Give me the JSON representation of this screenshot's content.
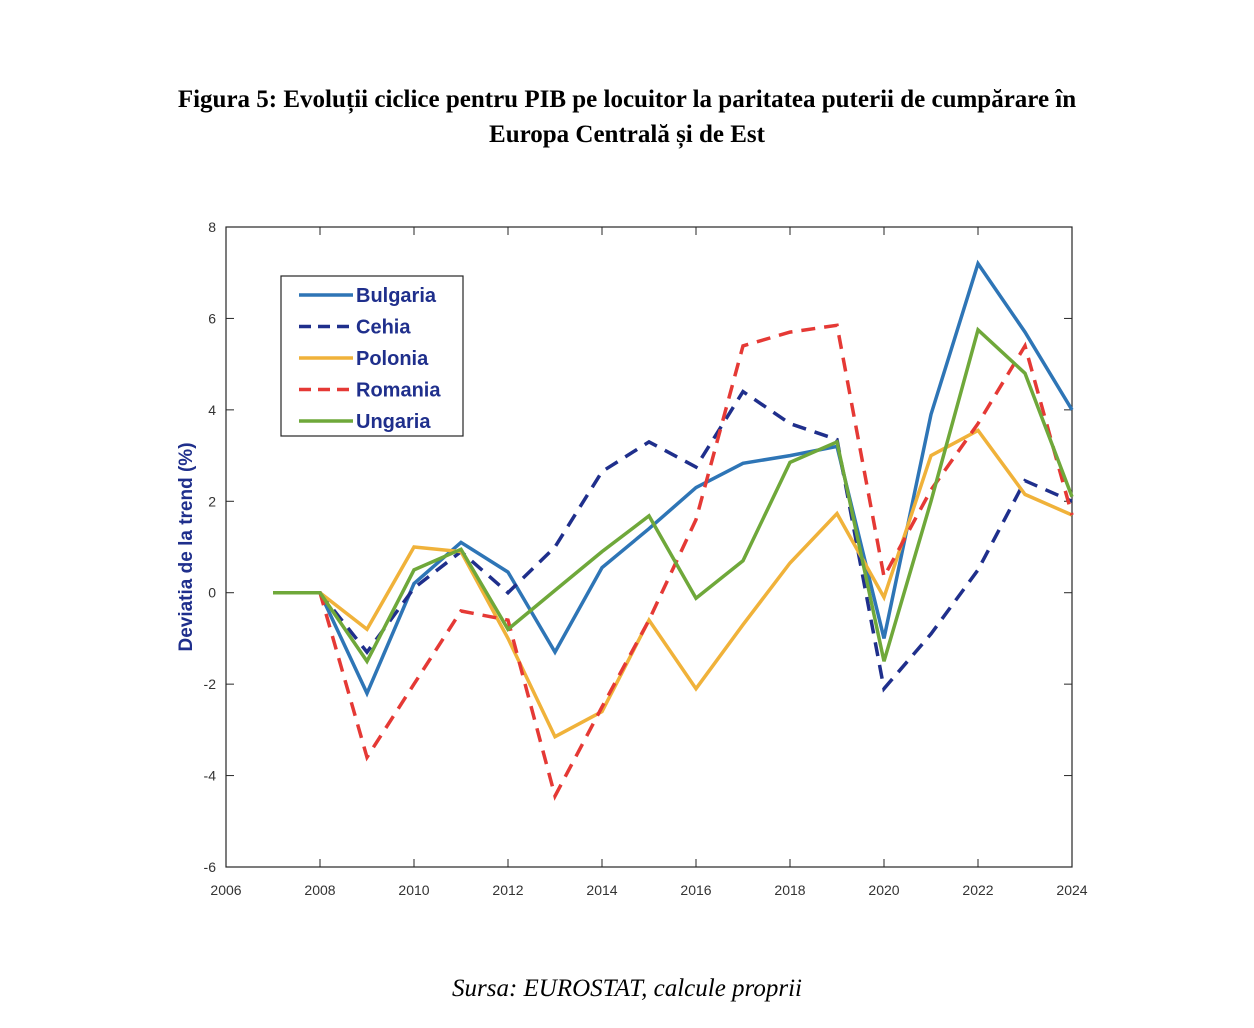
{
  "figure": {
    "title_line1": "Figura 5: Evoluții ciclice pentru PIB pe locuitor la paritatea puterii de cumpărare în",
    "title_line2": "Europa Centrală și de Est",
    "source": "Sursa: EUROSTAT, calcule proprii"
  },
  "chart_data": {
    "type": "line",
    "title": "Figura 5: Evoluții ciclice pentru PIB pe locuitor la paritatea puterii de cumpărare în Europa Centrală și de Est",
    "xlabel": "",
    "ylabel": "Deviatia de la trend (%)",
    "xlim": [
      2006,
      2024
    ],
    "ylim": [
      -6,
      8
    ],
    "xticks": [
      2006,
      2008,
      2010,
      2012,
      2014,
      2016,
      2018,
      2020,
      2022,
      2024
    ],
    "yticks": [
      -6,
      -4,
      -2,
      0,
      2,
      4,
      6,
      8
    ],
    "grid": false,
    "legend_position": "top-left",
    "x": [
      2007,
      2008,
      2009,
      2010,
      2011,
      2012,
      2013,
      2014,
      2015,
      2016,
      2017,
      2018,
      2019,
      2020,
      2021,
      2022,
      2023,
      2024
    ],
    "series": [
      {
        "name": "Bulgaria",
        "color": "#2e75b6",
        "style": "solid",
        "values": [
          0,
          0,
          -2.2,
          0.2,
          1.1,
          0.45,
          -1.3,
          0.55,
          1.4,
          2.3,
          2.83,
          3.0,
          3.2,
          -1.0,
          3.9,
          7.2,
          5.7,
          4.0
        ]
      },
      {
        "name": "Cehia",
        "color": "#1f2f8c",
        "style": "dashed",
        "values": [
          0,
          0,
          -1.3,
          0.1,
          0.9,
          0.0,
          1.0,
          2.65,
          3.3,
          2.75,
          4.4,
          3.7,
          3.35,
          -2.1,
          -0.9,
          0.5,
          2.45,
          2.0
        ]
      },
      {
        "name": "Polonia",
        "color": "#f0b23a",
        "style": "solid",
        "values": [
          0,
          0,
          -0.8,
          1.0,
          0.9,
          -1.0,
          -3.15,
          -2.6,
          -0.6,
          -2.1,
          -0.7,
          0.65,
          1.73,
          -0.1,
          3.0,
          3.55,
          2.15,
          1.7
        ]
      },
      {
        "name": "Romania",
        "color": "#e53935",
        "style": "dashed",
        "values": [
          0,
          0,
          -3.6,
          -2.0,
          -0.4,
          -0.6,
          -4.45,
          -2.5,
          -0.6,
          1.6,
          5.4,
          5.7,
          5.85,
          0.35,
          2.25,
          3.7,
          5.4,
          1.7
        ]
      },
      {
        "name": "Ungaria",
        "color": "#6fa83a",
        "style": "solid",
        "values": [
          0,
          0,
          -1.5,
          0.5,
          0.95,
          -0.8,
          0.05,
          0.9,
          1.68,
          -0.12,
          0.7,
          2.85,
          3.3,
          -1.5,
          2.0,
          5.75,
          4.8,
          2.1
        ]
      }
    ]
  }
}
